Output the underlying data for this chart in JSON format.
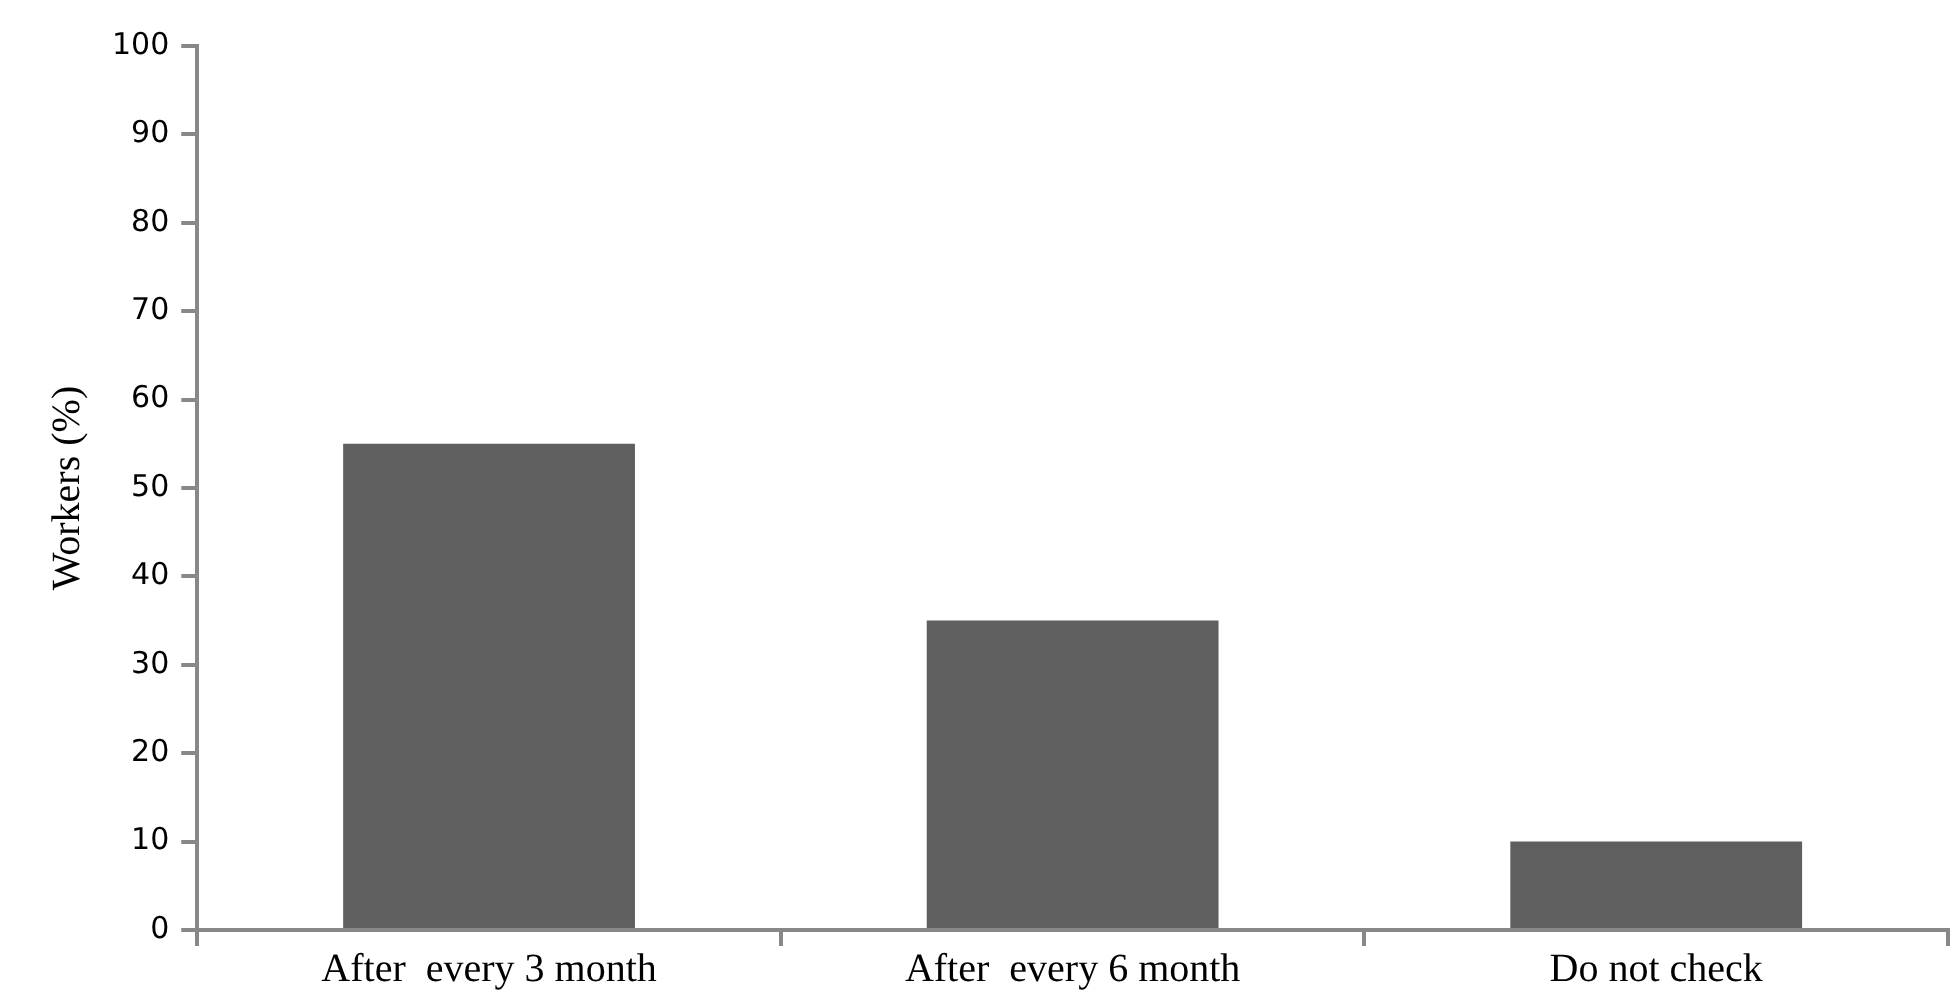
{
  "chart_data": {
    "type": "bar",
    "ylabel": "Workers (%)",
    "categories": [
      "After  every 3 month",
      "After  every 6 month",
      "Do not check"
    ],
    "values": [
      55,
      35,
      10
    ],
    "color": "#5f5f5f",
    "ylim": [
      0,
      100
    ],
    "yticks": [
      0,
      10,
      20,
      30,
      40,
      50,
      60,
      70,
      80,
      90,
      100
    ],
    "grid": false,
    "legend": false
  }
}
